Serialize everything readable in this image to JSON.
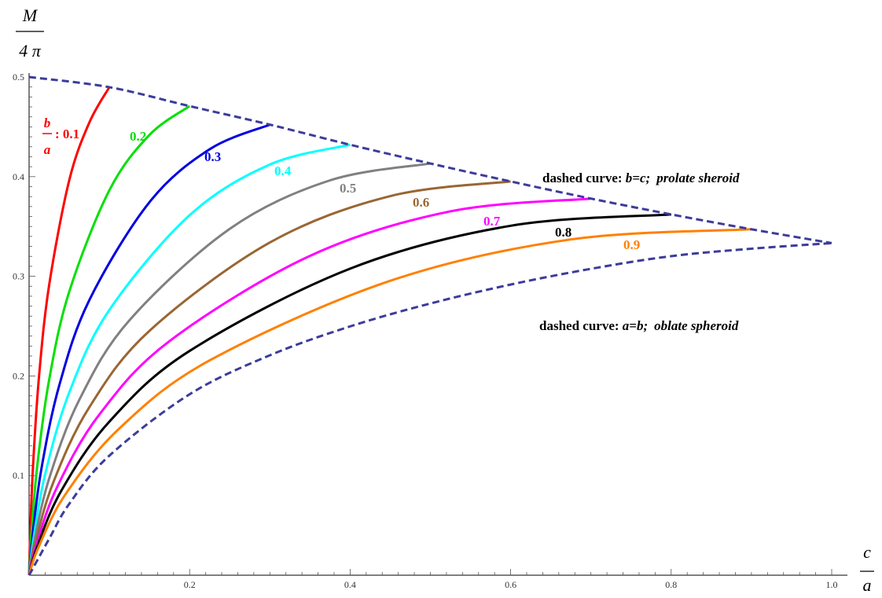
{
  "chart_data": {
    "type": "line",
    "xlabel": {
      "numerator": "c",
      "denominator": "a"
    },
    "ylabel": {
      "numerator": "M",
      "denominator": "4 π"
    },
    "xlim": [
      0,
      1.0
    ],
    "ylim": [
      0,
      0.5
    ],
    "xticks": [
      "0.2",
      "0.4",
      "0.6",
      "0.8",
      "1.0"
    ],
    "yticks": [
      "0.1",
      "0.2",
      "0.3",
      "0.4",
      "0.5"
    ],
    "grid": false,
    "legend_prefix": {
      "numerator": "b",
      "denominator": "a",
      "suffix": ": 0.1"
    },
    "series": [
      {
        "name": "0.1",
        "b": 0.1,
        "color": "#ff0000",
        "dashed": false,
        "x": [
          0,
          0.00125,
          0.005,
          0.0125,
          0.025,
          0.05,
          0.075,
          0.1
        ],
        "y": [
          0,
          0.0377,
          0.1109,
          0.2006,
          0.2912,
          0.3963,
          0.4542,
          0.4898
        ]
      },
      {
        "name": "0.2",
        "b": 0.2,
        "color": "#00e000",
        "dashed": false,
        "x": [
          0,
          0.0025,
          0.01,
          0.025,
          0.05,
          0.1,
          0.15,
          0.2
        ],
        "y": [
          0,
          0.0366,
          0.1085,
          0.1962,
          0.2845,
          0.3863,
          0.4419,
          0.4708
        ]
      },
      {
        "name": "0.3",
        "b": 0.3,
        "color": "#0000e0",
        "dashed": false,
        "x": [
          0,
          0.00375,
          0.015,
          0.0375,
          0.075,
          0.15,
          0.225,
          0.3
        ],
        "y": [
          0,
          0.0354,
          0.1051,
          0.1902,
          0.276,
          0.3744,
          0.4275,
          0.4522
        ]
      },
      {
        "name": "0.4",
        "b": 0.4,
        "color": "#00ffff",
        "dashed": false,
        "x": [
          0,
          0.005,
          0.02,
          0.05,
          0.1,
          0.2,
          0.3,
          0.4
        ],
        "y": [
          0,
          0.0341,
          0.1012,
          0.1833,
          0.2662,
          0.3613,
          0.4122,
          0.432
        ]
      },
      {
        "name": "0.5",
        "b": 0.5,
        "color": "#808080",
        "dashed": false,
        "x": [
          0,
          0.00625,
          0.025,
          0.0625,
          0.125,
          0.25,
          0.375,
          0.5
        ],
        "y": [
          0,
          0.0327,
          0.097,
          0.1759,
          0.2558,
          0.3476,
          0.3963,
          0.4132
        ]
      },
      {
        "name": "0.6",
        "b": 0.6,
        "color": "#996633",
        "dashed": false,
        "x": [
          0,
          0.0075,
          0.03,
          0.075,
          0.15,
          0.3,
          0.45,
          0.6
        ],
        "y": [
          0,
          0.0312,
          0.0928,
          0.1685,
          0.2453,
          0.3339,
          0.3805,
          0.3952
        ]
      },
      {
        "name": "0.7",
        "b": 0.7,
        "color": "#ff00ff",
        "dashed": false,
        "x": [
          0,
          0.00875,
          0.035,
          0.0875,
          0.175,
          0.35,
          0.525,
          0.7
        ],
        "y": [
          0,
          0.0298,
          0.0886,
          0.1612,
          0.235,
          0.3205,
          0.3652,
          0.378
        ]
      },
      {
        "name": "0.8",
        "b": 0.8,
        "color": "#000000",
        "dashed": false,
        "x": [
          0,
          0.01,
          0.04,
          0.1,
          0.2,
          0.4,
          0.6,
          0.8
        ],
        "y": [
          0,
          0.0284,
          0.0846,
          0.1541,
          0.2251,
          0.3077,
          0.3507,
          0.3621
        ]
      },
      {
        "name": "0.9",
        "b": 0.9,
        "color": "#ff8000",
        "dashed": false,
        "x": [
          0,
          0.01125,
          0.045,
          0.1125,
          0.225,
          0.45,
          0.675,
          0.9
        ],
        "y": [
          0,
          0.0271,
          0.0808,
          0.1473,
          0.2156,
          0.2955,
          0.337,
          0.3472
        ]
      },
      {
        "dashed": true,
        "color": "#3c3c9c",
        "x": [
          0,
          0.1,
          0.2,
          0.3,
          0.4,
          0.5,
          0.6,
          0.7,
          0.8,
          0.9,
          1.0
        ],
        "y": [
          0.5,
          0.4898,
          0.4708,
          0.4522,
          0.432,
          0.4132,
          0.3952,
          0.378,
          0.3621,
          0.3472,
          0.3333
        ]
      },
      {
        "dashed": true,
        "color": "#3c3c9c",
        "x": [
          0,
          0.025,
          0.05,
          0.1,
          0.2,
          0.3,
          0.4,
          0.5,
          0.6,
          0.7,
          0.8,
          0.9,
          1.0
        ],
        "y": [
          0,
          0.0365,
          0.0716,
          0.12,
          0.1816,
          0.2207,
          0.2497,
          0.2727,
          0.2917,
          0.3075,
          0.3202,
          0.3277,
          0.3333
        ]
      }
    ],
    "annotations": [
      {
        "prefix": "dashed curve: ",
        "math": "b=c;",
        "suffix": "prolate sheroid"
      },
      {
        "prefix": "dashed curve: ",
        "math": "a=b;",
        "suffix": "oblate spheroid"
      }
    ]
  }
}
